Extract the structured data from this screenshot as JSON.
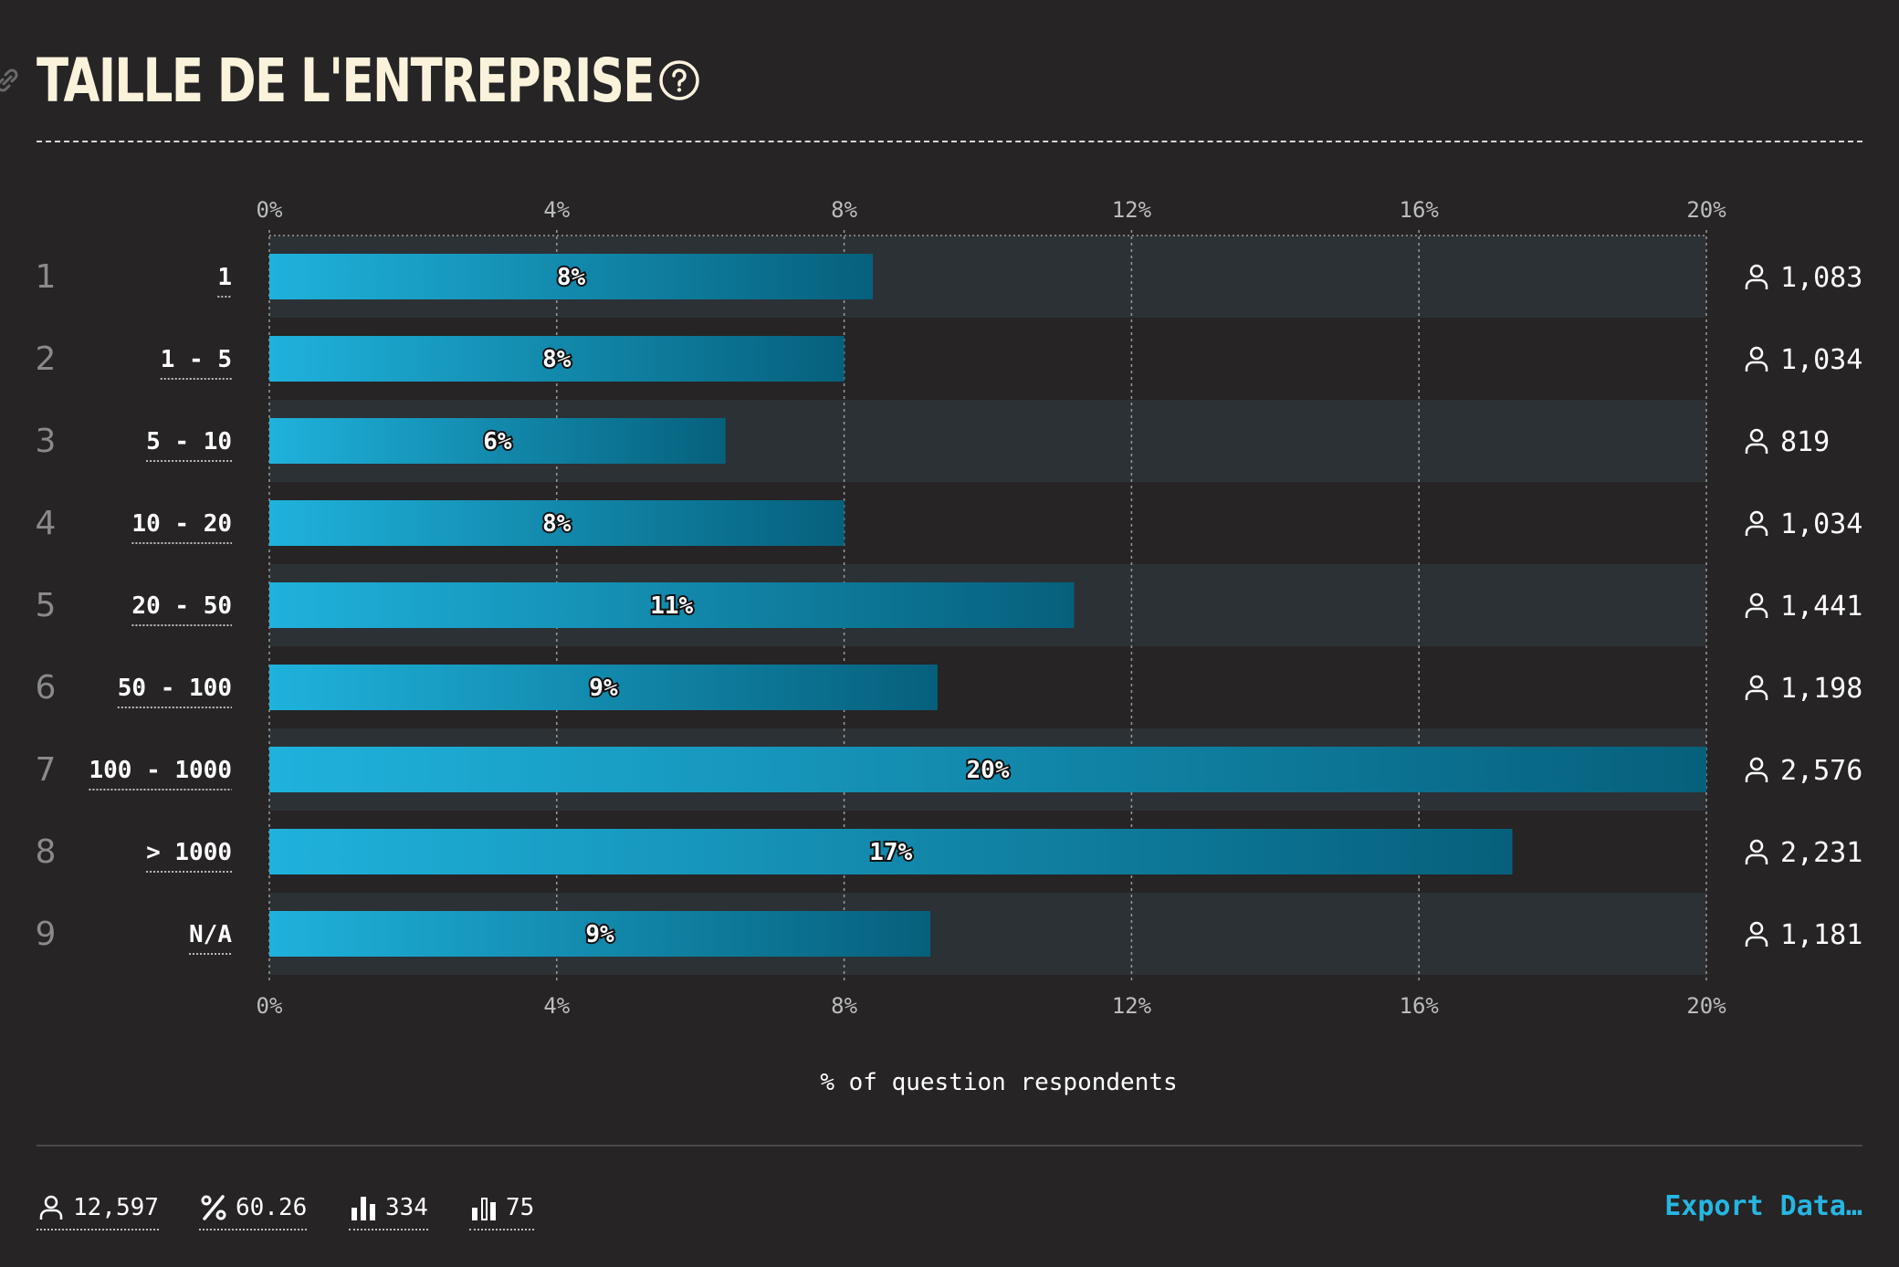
{
  "header": {
    "title": "TAILLE DE L'ENTREPRISE"
  },
  "chart_data": {
    "type": "bar",
    "orientation": "horizontal",
    "xlabel": "% of question respondents",
    "xlim": [
      0,
      20
    ],
    "xticks": [
      "0%",
      "4%",
      "8%",
      "12%",
      "16%",
      "20%"
    ],
    "xtick_values": [
      0,
      4,
      8,
      12,
      16,
      20
    ],
    "grid": true,
    "ranks": [
      "1",
      "2",
      "3",
      "4",
      "5",
      "6",
      "7",
      "8",
      "9"
    ],
    "categories": [
      "1",
      "1 - 5",
      "5 - 10",
      "10 - 20",
      "20 - 50",
      "50 - 100",
      "100 - 1000",
      "> 1000",
      "N/A"
    ],
    "values": [
      8.4,
      8.0,
      6.35,
      8.0,
      11.2,
      9.3,
      20.0,
      17.3,
      9.2
    ],
    "value_labels": [
      "8%",
      "8%",
      "6%",
      "8%",
      "11%",
      "9%",
      "20%",
      "17%",
      "9%"
    ],
    "respondents": [
      "1,083",
      "1,034",
      "819",
      "1,034",
      "1,441",
      "1,198",
      "2,576",
      "2,231",
      "1,181"
    ],
    "colors": {
      "bar_start": "#1fb2dc",
      "bar_end": "#06607c",
      "row_band": "#2c3135",
      "grid": "#9a9a9a",
      "tick_text": "#bdbdbd",
      "rank_text": "#8a8a8a"
    }
  },
  "footer": {
    "stats": [
      {
        "icon": "user-icon",
        "value": "12,597"
      },
      {
        "icon": "percent-icon",
        "value": "60.26"
      },
      {
        "icon": "bar-chart-icon",
        "value": "334"
      },
      {
        "icon": "bar-chart-outline-icon",
        "value": "75"
      }
    ],
    "export_label": "Export Data…"
  }
}
